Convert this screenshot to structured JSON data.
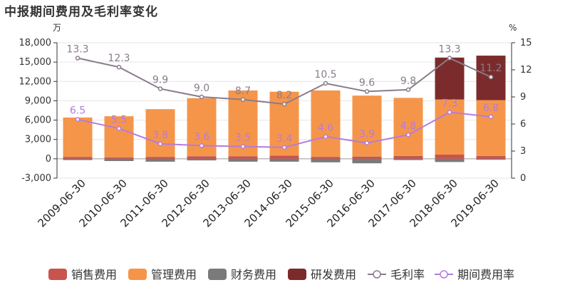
{
  "chart_data": {
    "type": "bar",
    "title": "中报期间费用及毛利率变化",
    "categories": [
      "2009-06-30",
      "2010-06-30",
      "2011-06-30",
      "2012-06-30",
      "2013-06-30",
      "2014-06-30",
      "2015-06-30",
      "2016-06-30",
      "2017-06-30",
      "2018-06-30",
      "2019-06-30"
    ],
    "y_left": {
      "unit": "万",
      "ylim": [
        -3000,
        18000
      ],
      "ticks": [
        "-3,000",
        "0",
        "3,000",
        "6,000",
        "9,000",
        "12,000",
        "15,000",
        "18,000"
      ]
    },
    "y_right": {
      "unit": "%",
      "ylim": [
        0,
        15
      ],
      "ticks": [
        "0",
        "3",
        "6",
        "9",
        "12",
        "15"
      ]
    },
    "series": [
      {
        "name": "销售费用",
        "kind": "bar",
        "color": "#c9544e",
        "values": [
          300,
          200,
          300,
          400,
          400,
          500,
          300,
          350,
          450,
          650,
          450
        ]
      },
      {
        "name": "管理费用",
        "kind": "bar",
        "color": "#f5954a",
        "values": [
          6100,
          6400,
          7400,
          9000,
          10200,
          9900,
          10300,
          9450,
          9000,
          8550,
          8650
        ]
      },
      {
        "name": "财务费用",
        "kind": "bar",
        "color": "#7a7a7a",
        "values": [
          -200,
          -350,
          -450,
          -250,
          -450,
          -450,
          -550,
          -700,
          -200,
          -500,
          -150
        ]
      },
      {
        "name": "研发费用",
        "kind": "bar",
        "color": "#7b2b2b",
        "values": [
          0,
          0,
          0,
          0,
          0,
          0,
          0,
          0,
          0,
          6500,
          6900
        ]
      },
      {
        "name": "毛利率",
        "kind": "line",
        "axis": "right",
        "color": "#8a7b8c",
        "values": [
          13.3,
          12.3,
          9.9,
          9.0,
          8.7,
          8.2,
          10.5,
          9.6,
          9.8,
          13.3,
          11.2
        ],
        "labels": [
          "13.3",
          "12.3",
          "9.9",
          "9.0",
          "8.7",
          "8.2",
          "10.5",
          "9.6",
          "9.8",
          "13.3",
          "11.2"
        ]
      },
      {
        "name": "期间费用率",
        "kind": "line",
        "axis": "right",
        "color": "#b57be0",
        "values": [
          6.5,
          5.5,
          3.8,
          3.6,
          3.5,
          3.4,
          4.6,
          3.9,
          4.8,
          7.3,
          6.8
        ],
        "labels": [
          "6.5",
          "5.5",
          "3.8",
          "3.6",
          "3.5",
          "3.4",
          "4.6",
          "3.9",
          "4.8",
          "7.3",
          "6.8"
        ]
      }
    ],
    "legend": {
      "position": "bottom"
    },
    "grid": true
  }
}
